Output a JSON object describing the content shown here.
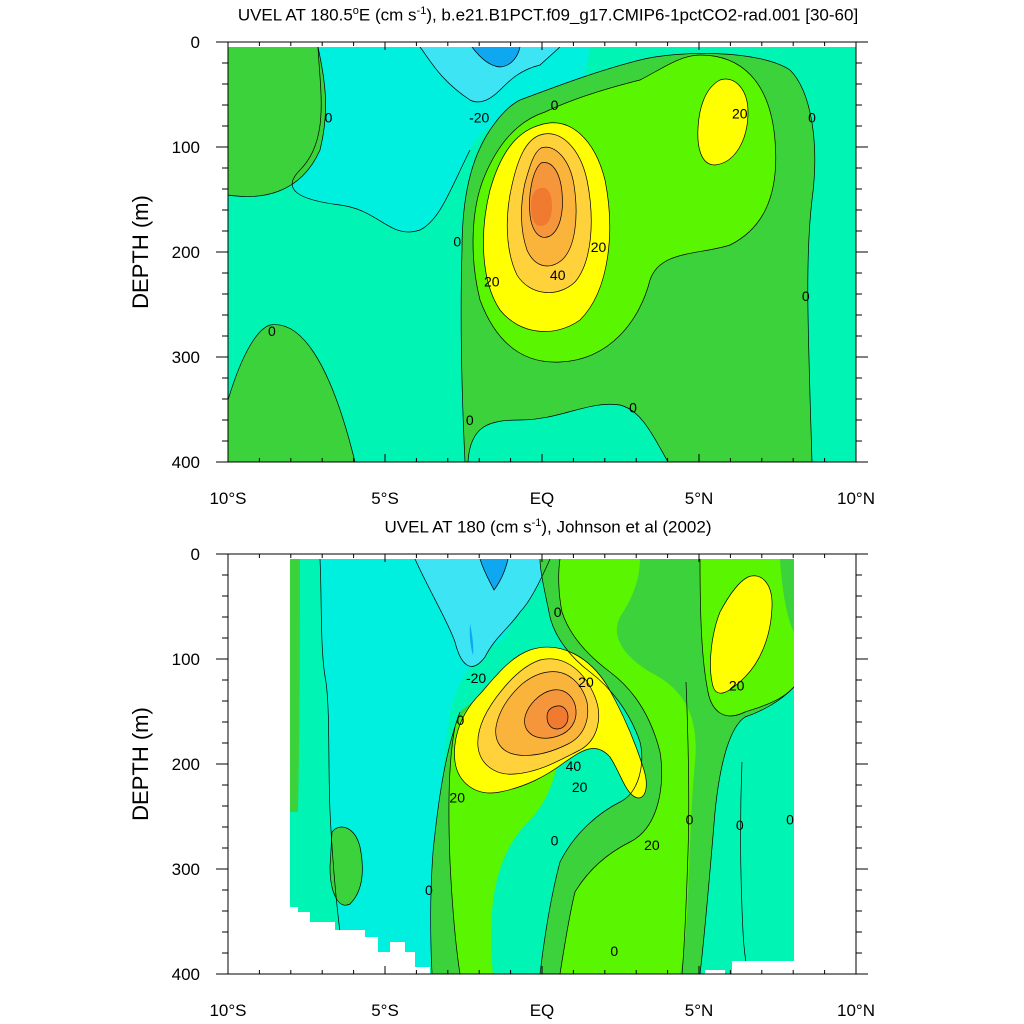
{
  "figure": {
    "panels": [
      {
        "title_main": "UVEL AT 180.5",
        "title_deg": "o",
        "title_mid": "E (cm s",
        "title_sup": "-1",
        "title_tail": "), b.e21.B1PCT.f09_g17.CMIP6-1pctCO2-rad.001 [30-60]"
      },
      {
        "title_main": "UVEL AT 180 (cm s",
        "title_sup": "-1",
        "title_tail": "), Johnson et al (2002)"
      }
    ],
    "y_axis_title": "DEPTH (m)"
  },
  "colors": {
    "level_-40": "#0fa8f0",
    "level_-20": "#3ce4f4",
    "level_-10": "#00f0e0",
    "level_0": "#00f5b4",
    "level_10": "#3cd23c",
    "level_20": "#5af500",
    "level_30": "#ffff00",
    "level_40": "#ffd23c",
    "level_50": "#fab43c",
    "level_60": "#f5963c"
  },
  "chart_data": [
    {
      "type": "contour",
      "title": "UVEL AT 180.5°E (cm s-1), b.e21.B1PCT.f09_g17.CMIP6-1pctCO2-rad.001 [30-60]",
      "xlabel": "",
      "ylabel": "DEPTH (m)",
      "xlim": [
        -10,
        10
      ],
      "ylim": [
        400,
        0
      ],
      "x_ticks": [
        -10,
        -5,
        0,
        5,
        10
      ],
      "x_tick_labels": [
        "10°S",
        "5°S",
        "EQ",
        "5°N",
        "10°N"
      ],
      "y_ticks": [
        0,
        100,
        200,
        300,
        400
      ],
      "y_tick_labels": [
        "0",
        "100",
        "200",
        "300",
        "400"
      ],
      "levels": [
        -40,
        -20,
        -10,
        0,
        10,
        20,
        30,
        40,
        50,
        60
      ],
      "features": [
        {
          "kind": "EUC core",
          "lat": 0,
          "depth": 160,
          "max": 60
        },
        {
          "kind": "NECC",
          "lat": 5.8,
          "depth": 80,
          "max": 25
        },
        {
          "kind": "SEC",
          "lat": -2.5,
          "depth": 10,
          "min": -40
        }
      ],
      "contour_labels": [
        {
          "text": "0",
          "lat": -6.8,
          "depth": 72
        },
        {
          "text": "-20",
          "lat": -2.0,
          "depth": 72
        },
        {
          "text": "0",
          "lat": 0.4,
          "depth": 60
        },
        {
          "text": "20",
          "lat": 6.3,
          "depth": 68
        },
        {
          "text": "0",
          "lat": 8.6,
          "depth": 72
        },
        {
          "text": "0",
          "lat": -2.7,
          "depth": 190
        },
        {
          "text": "20",
          "lat": 1.8,
          "depth": 195
        },
        {
          "text": "40",
          "lat": 0.5,
          "depth": 222
        },
        {
          "text": "20",
          "lat": -1.6,
          "depth": 228
        },
        {
          "text": "0",
          "lat": 8.4,
          "depth": 242
        },
        {
          "text": "0",
          "lat": -8.6,
          "depth": 275
        },
        {
          "text": "0",
          "lat": -2.3,
          "depth": 360
        },
        {
          "text": "0",
          "lat": 2.9,
          "depth": 348
        }
      ]
    },
    {
      "type": "contour",
      "title": "UVEL AT 180 (cm s-1), Johnson et al (2002)",
      "xlabel": "",
      "ylabel": "DEPTH (m)",
      "xlim": [
        -10,
        10
      ],
      "ylim": [
        400,
        0
      ],
      "x_ticks": [
        -10,
        -5,
        0,
        5,
        10
      ],
      "x_tick_labels": [
        "10°S",
        "5°S",
        "EQ",
        "5°N",
        "10°N"
      ],
      "y_ticks": [
        0,
        100,
        200,
        300,
        400
      ],
      "y_tick_labels": [
        "0",
        "100",
        "200",
        "300",
        "400"
      ],
      "levels": [
        -40,
        -20,
        -10,
        0,
        10,
        20,
        30,
        40,
        50,
        60
      ],
      "data_extent_lat": [
        -8,
        8
      ],
      "data_extent_depth": [
        5,
        400
      ],
      "features": [
        {
          "kind": "EUC core",
          "lat": 0.5,
          "depth": 170,
          "max": 60
        },
        {
          "kind": "NECC",
          "lat": 6.0,
          "depth": 70,
          "max": 25
        },
        {
          "kind": "SEC",
          "lat": -1.6,
          "depth": 15,
          "min": -40
        }
      ],
      "contour_labels": [
        {
          "text": "0",
          "lat": 0.5,
          "depth": 55
        },
        {
          "text": "-20",
          "lat": -2.1,
          "depth": 118
        },
        {
          "text": "20",
          "lat": 1.4,
          "depth": 122
        },
        {
          "text": "20",
          "lat": 6.2,
          "depth": 125
        },
        {
          "text": "0",
          "lat": -2.6,
          "depth": 158
        },
        {
          "text": "40",
          "lat": 1.0,
          "depth": 202
        },
        {
          "text": "20",
          "lat": 1.2,
          "depth": 222
        },
        {
          "text": "20",
          "lat": -2.7,
          "depth": 232
        },
        {
          "text": "0",
          "lat": 4.7,
          "depth": 253
        },
        {
          "text": "0",
          "lat": 6.3,
          "depth": 258
        },
        {
          "text": "0",
          "lat": 7.9,
          "depth": 253
        },
        {
          "text": "0",
          "lat": 0.4,
          "depth": 273
        },
        {
          "text": "20",
          "lat": 3.5,
          "depth": 277
        },
        {
          "text": "0",
          "lat": -3.6,
          "depth": 320
        },
        {
          "text": "0",
          "lat": 2.3,
          "depth": 378
        }
      ]
    }
  ]
}
